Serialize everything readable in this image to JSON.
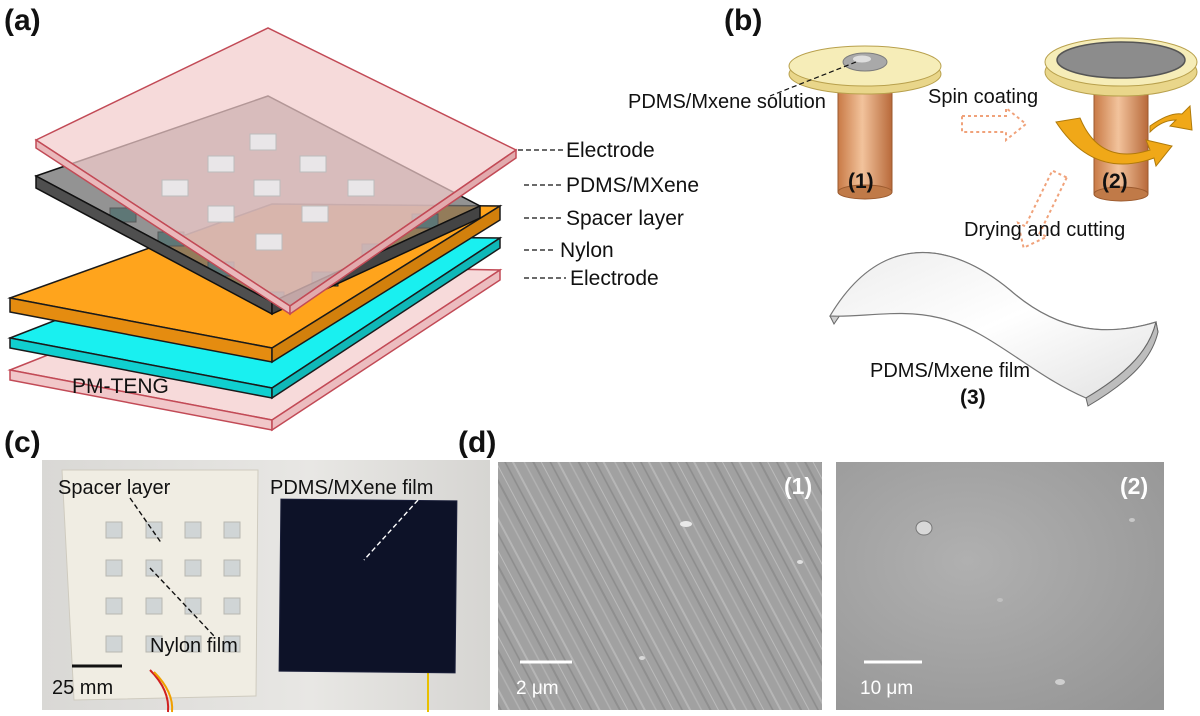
{
  "panels": {
    "a": {
      "letter": "(a)",
      "device_label": "PM-TENG",
      "layers": [
        "Electrode",
        "PDMS/MXene",
        "Spacer layer",
        "Nylon",
        "Electrode"
      ],
      "colors": {
        "electrode": "#f5d4d4",
        "pdms_mxene": "#7a7a7a",
        "spacer": "#ffa41c",
        "nylon": "#19f0f0"
      }
    },
    "b": {
      "letter": "(b)",
      "solution_label": "PDMS/Mxene solution",
      "spin_label": "Spin coating",
      "drying_label": "Drying and cutting",
      "film_label": "PDMS/Mxene film",
      "steps": [
        "(1)",
        "(2)",
        "(3)"
      ],
      "colors": {
        "copper": "#e8a06a",
        "disk": "#f6edb8",
        "arrow": "#f0a818"
      }
    },
    "c": {
      "letter": "(c)",
      "spacer_label": "Spacer layer",
      "nylon_label": "Nylon film",
      "film_label": "PDMS/MXene film",
      "scale_bar": "25 mm"
    },
    "d": {
      "letter": "(d)",
      "images": [
        {
          "number": "(1)",
          "scale_bar": "2 μm"
        },
        {
          "number": "(2)",
          "scale_bar": "10 μm"
        }
      ]
    }
  }
}
